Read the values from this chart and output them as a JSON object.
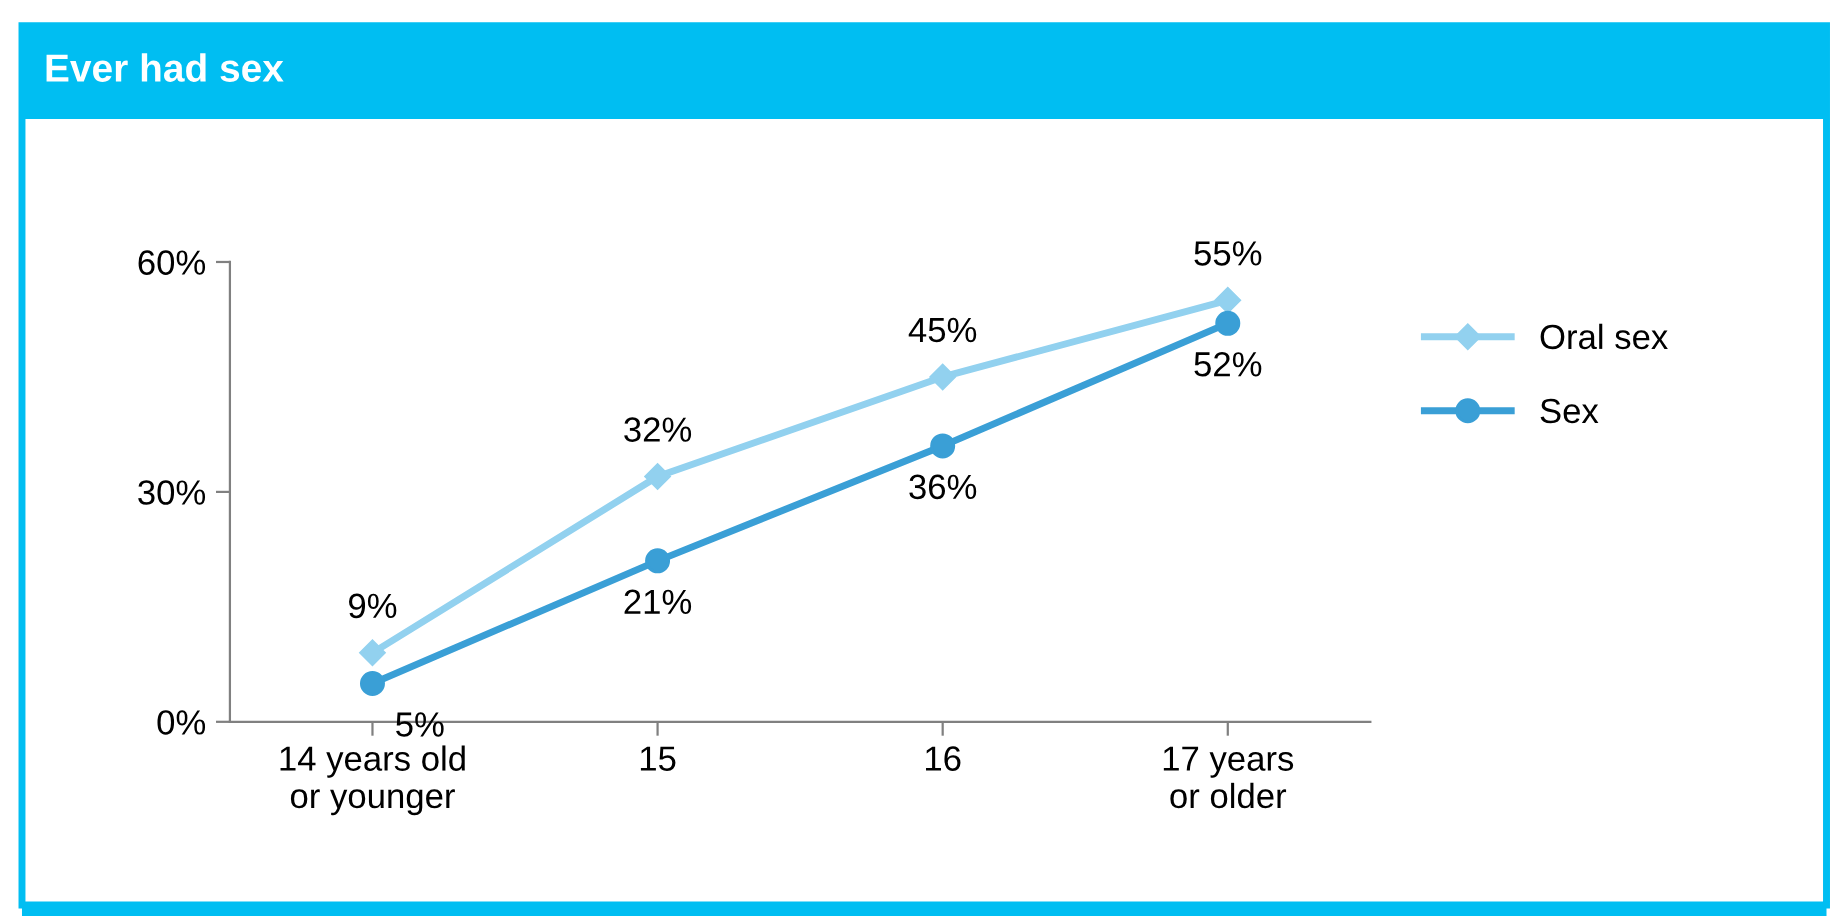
{
  "chart_data": {
    "type": "line",
    "title": "Ever had sex",
    "categories": [
      "14 years old\nor younger",
      "15",
      "16",
      "17 years\nor older"
    ],
    "series": [
      {
        "name": "Oral sex",
        "color": "#92d1ef",
        "values": [
          9,
          32,
          45,
          55
        ],
        "value_labels": [
          "9%",
          "32%",
          "45%",
          "55%"
        ],
        "marker": "diamond"
      },
      {
        "name": "Sex",
        "color": "#3a9fd6",
        "values": [
          5,
          21,
          36,
          52
        ],
        "value_labels": [
          "5%",
          "21%",
          "36%",
          "52%"
        ],
        "marker": "circle"
      }
    ],
    "ylim": [
      0,
      60
    ],
    "yticks": [
      {
        "value": 0,
        "label": "0%"
      },
      {
        "value": 30,
        "label": "30%"
      },
      {
        "value": 60,
        "label": "60%"
      }
    ],
    "grid": false,
    "legend": "right",
    "line_style": "solid"
  }
}
